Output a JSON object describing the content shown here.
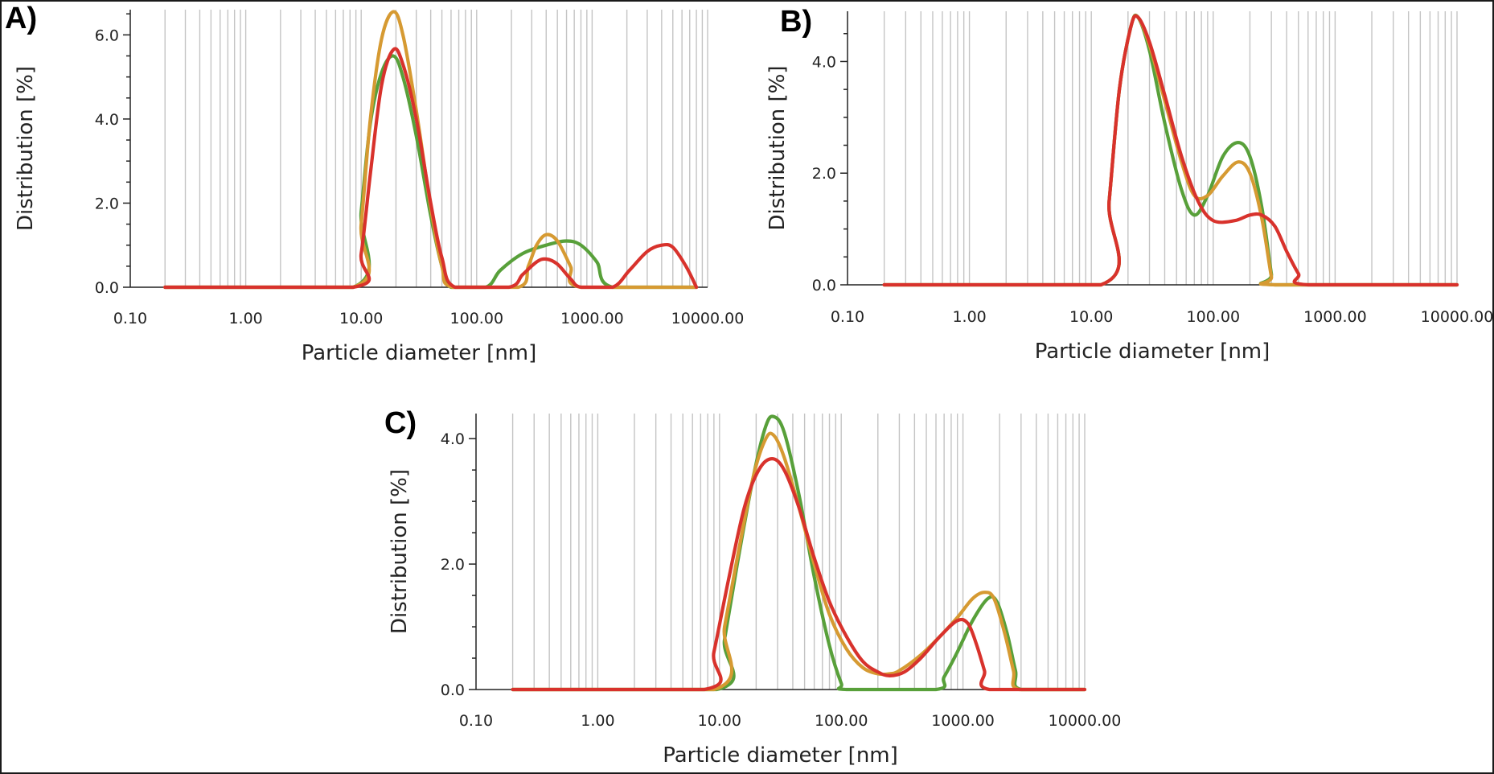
{
  "colors": {
    "series_green": "#58a03a",
    "series_orange": "#d69a32",
    "series_red": "#d8322c",
    "grid": "#c4c4c4",
    "axis": "#222222"
  },
  "panels": [
    {
      "label": "A)"
    },
    {
      "label": "B)"
    },
    {
      "label": "C)"
    }
  ],
  "chart_data": [
    {
      "type": "line",
      "panel": "A)",
      "xlabel": "Particle diameter [nm]",
      "ylabel": "Distribution [%]",
      "x_scale": "log",
      "xlim": [
        0.1,
        10000
      ],
      "ylim": [
        0,
        6.6
      ],
      "x_ticks": [
        0.1,
        1,
        10,
        100,
        1000,
        10000
      ],
      "x_tick_labels": [
        "0.10",
        "1.00",
        "10.00",
        "100.00",
        "1000.00",
        "10000.00"
      ],
      "y_ticks": [
        0,
        2,
        4,
        6
      ],
      "y_tick_labels": [
        "0.0",
        "2.0",
        "4.0",
        "6.0"
      ],
      "grid": "vertical minor log gridlines",
      "legend": "none",
      "series": [
        {
          "color": "series_green",
          "points": [
            [
              0.2,
              0
            ],
            [
              8.5,
              0
            ],
            [
              10,
              1.8
            ],
            [
              12,
              3.9
            ],
            [
              15,
              5.1
            ],
            [
              19,
              5.5
            ],
            [
              23,
              5.0
            ],
            [
              30,
              3.6
            ],
            [
              40,
              1.7
            ],
            [
              50,
              0.5
            ],
            [
              60,
              0
            ],
            [
              120,
              0
            ],
            [
              160,
              0.4
            ],
            [
              250,
              0.8
            ],
            [
              400,
              1.0
            ],
            [
              600,
              1.1
            ],
            [
              800,
              1.0
            ],
            [
              1100,
              0.6
            ],
            [
              1500,
              0
            ],
            [
              8000,
              0
            ]
          ]
        },
        {
          "color": "series_orange",
          "points": [
            [
              0.2,
              0
            ],
            [
              8.5,
              0
            ],
            [
              10,
              1.5
            ],
            [
              12,
              4.0
            ],
            [
              15,
              5.9
            ],
            [
              19,
              6.55
            ],
            [
              23,
              6.0
            ],
            [
              30,
              4.2
            ],
            [
              40,
              1.9
            ],
            [
              50,
              0.5
            ],
            [
              62,
              0
            ],
            [
              230,
              0
            ],
            [
              280,
              0.5
            ],
            [
              330,
              1.0
            ],
            [
              400,
              1.25
            ],
            [
              500,
              1.1
            ],
            [
              650,
              0.5
            ],
            [
              800,
              0
            ],
            [
              8000,
              0
            ]
          ]
        },
        {
          "color": "series_red",
          "points": [
            [
              0.2,
              0
            ],
            [
              8.5,
              0
            ],
            [
              10,
              0.8
            ],
            [
              12,
              2.7
            ],
            [
              15,
              4.8
            ],
            [
              19,
              5.65
            ],
            [
              23,
              5.3
            ],
            [
              30,
              4.0
            ],
            [
              40,
              2.0
            ],
            [
              50,
              0.7
            ],
            [
              65,
              0
            ],
            [
              190,
              0
            ],
            [
              250,
              0.3
            ],
            [
              330,
              0.6
            ],
            [
              400,
              0.67
            ],
            [
              500,
              0.55
            ],
            [
              650,
              0.2
            ],
            [
              800,
              0
            ],
            [
              1500,
              0
            ],
            [
              2100,
              0.4
            ],
            [
              3000,
              0.85
            ],
            [
              4000,
              1.0
            ],
            [
              5000,
              0.95
            ],
            [
              6500,
              0.5
            ],
            [
              8000,
              0
            ]
          ]
        }
      ]
    },
    {
      "type": "line",
      "panel": "B)",
      "xlabel": "Particle diameter [nm]",
      "ylabel": "Distribution [%]",
      "x_scale": "log",
      "xlim": [
        0.1,
        10000
      ],
      "ylim": [
        0,
        4.9
      ],
      "x_ticks": [
        0.1,
        1,
        10,
        100,
        1000,
        10000
      ],
      "x_tick_labels": [
        "0.10",
        "1.00",
        "10.00",
        "100.00",
        "1000.00",
        "10000.00"
      ],
      "y_ticks": [
        0,
        2,
        4
      ],
      "y_tick_labels": [
        "0.0",
        "2.0",
        "4.0"
      ],
      "grid": "vertical minor log gridlines",
      "legend": "none",
      "series": [
        {
          "color": "series_green",
          "points": [
            [
              0.2,
              0
            ],
            [
              12,
              0
            ],
            [
              14,
              1.5
            ],
            [
              17,
              3.5
            ],
            [
              21,
              4.6
            ],
            [
              24,
              4.8
            ],
            [
              30,
              4.2
            ],
            [
              40,
              2.9
            ],
            [
              55,
              1.7
            ],
            [
              70,
              1.25
            ],
            [
              90,
              1.6
            ],
            [
              120,
              2.3
            ],
            [
              160,
              2.55
            ],
            [
              200,
              2.3
            ],
            [
              250,
              1.4
            ],
            [
              300,
              0.2
            ],
            [
              320,
              0
            ],
            [
              10000,
              0
            ]
          ]
        },
        {
          "color": "series_orange",
          "points": [
            [
              0.2,
              0
            ],
            [
              12,
              0
            ],
            [
              14,
              1.5
            ],
            [
              17,
              3.5
            ],
            [
              21,
              4.6
            ],
            [
              24,
              4.8
            ],
            [
              30,
              4.3
            ],
            [
              40,
              3.3
            ],
            [
              55,
              2.2
            ],
            [
              70,
              1.6
            ],
            [
              90,
              1.6
            ],
            [
              120,
              1.95
            ],
            [
              160,
              2.2
            ],
            [
              200,
              2.0
            ],
            [
              250,
              1.2
            ],
            [
              300,
              0.15
            ],
            [
              320,
              0
            ],
            [
              10000,
              0
            ]
          ]
        },
        {
          "color": "series_red",
          "points": [
            [
              0.2,
              0
            ],
            [
              12,
              0
            ],
            [
              14,
              1.5
            ],
            [
              17,
              3.5
            ],
            [
              21,
              4.6
            ],
            [
              24,
              4.8
            ],
            [
              30,
              4.35
            ],
            [
              40,
              3.4
            ],
            [
              55,
              2.3
            ],
            [
              75,
              1.5
            ],
            [
              100,
              1.15
            ],
            [
              150,
              1.15
            ],
            [
              200,
              1.25
            ],
            [
              250,
              1.25
            ],
            [
              320,
              1.05
            ],
            [
              400,
              0.6
            ],
            [
              500,
              0.2
            ],
            [
              600,
              0
            ],
            [
              10000,
              0
            ]
          ]
        }
      ]
    },
    {
      "type": "line",
      "panel": "C)",
      "xlabel": "Particle diameter [nm]",
      "ylabel": "Distribution [%]",
      "x_scale": "log",
      "xlim": [
        0.1,
        10000
      ],
      "ylim": [
        0,
        4.4
      ],
      "x_ticks": [
        0.1,
        1,
        10,
        100,
        1000,
        10000
      ],
      "x_tick_labels": [
        "0.10",
        "1.00",
        "10.00",
        "100.00",
        "1000.00",
        "10000.00"
      ],
      "y_ticks": [
        0,
        2,
        4
      ],
      "y_tick_labels": [
        "0.0",
        "2.0",
        "4.0"
      ],
      "grid": "vertical minor log gridlines",
      "legend": "none",
      "series": [
        {
          "color": "series_green",
          "points": [
            [
              0.2,
              0
            ],
            [
              9.5,
              0
            ],
            [
              11,
              0.8
            ],
            [
              14,
              2.0
            ],
            [
              19,
              3.4
            ],
            [
              24,
              4.2
            ],
            [
              28,
              4.35
            ],
            [
              34,
              4.1
            ],
            [
              45,
              3.1
            ],
            [
              60,
              1.8
            ],
            [
              80,
              0.7
            ],
            [
              100,
              0.1
            ],
            [
              110,
              0
            ],
            [
              600,
              0
            ],
            [
              700,
              0.2
            ],
            [
              900,
              0.6
            ],
            [
              1200,
              1.1
            ],
            [
              1600,
              1.45
            ],
            [
              1900,
              1.4
            ],
            [
              2300,
              0.9
            ],
            [
              2700,
              0.3
            ],
            [
              3000,
              0
            ],
            [
              10000,
              0
            ]
          ]
        },
        {
          "color": "series_orange",
          "points": [
            [
              0.2,
              0
            ],
            [
              9,
              0
            ],
            [
              11,
              1.0
            ],
            [
              14,
              2.1
            ],
            [
              19,
              3.4
            ],
            [
              24,
              4.0
            ],
            [
              28,
              4.05
            ],
            [
              34,
              3.7
            ],
            [
              45,
              2.9
            ],
            [
              60,
              2.0
            ],
            [
              80,
              1.2
            ],
            [
              110,
              0.65
            ],
            [
              150,
              0.35
            ],
            [
              200,
              0.25
            ],
            [
              250,
              0.25
            ],
            [
              300,
              0.3
            ],
            [
              450,
              0.55
            ],
            [
              650,
              0.85
            ],
            [
              900,
              1.15
            ],
            [
              1200,
              1.45
            ],
            [
              1500,
              1.55
            ],
            [
              1800,
              1.45
            ],
            [
              2200,
              0.9
            ],
            [
              2600,
              0.3
            ],
            [
              2900,
              0
            ],
            [
              10000,
              0
            ]
          ]
        },
        {
          "color": "series_red",
          "points": [
            [
              0.2,
              0
            ],
            [
              7.5,
              0
            ],
            [
              9,
              0.6
            ],
            [
              12,
              1.8
            ],
            [
              16,
              2.9
            ],
            [
              21,
              3.5
            ],
            [
              27,
              3.68
            ],
            [
              34,
              3.5
            ],
            [
              45,
              2.9
            ],
            [
              60,
              2.1
            ],
            [
              80,
              1.4
            ],
            [
              110,
              0.85
            ],
            [
              150,
              0.45
            ],
            [
              200,
              0.28
            ],
            [
              250,
              0.22
            ],
            [
              330,
              0.28
            ],
            [
              450,
              0.5
            ],
            [
              650,
              0.85
            ],
            [
              900,
              1.1
            ],
            [
              1100,
              1.05
            ],
            [
              1300,
              0.7
            ],
            [
              1500,
              0.3
            ],
            [
              1650,
              0
            ],
            [
              10000,
              0
            ]
          ]
        }
      ]
    }
  ]
}
